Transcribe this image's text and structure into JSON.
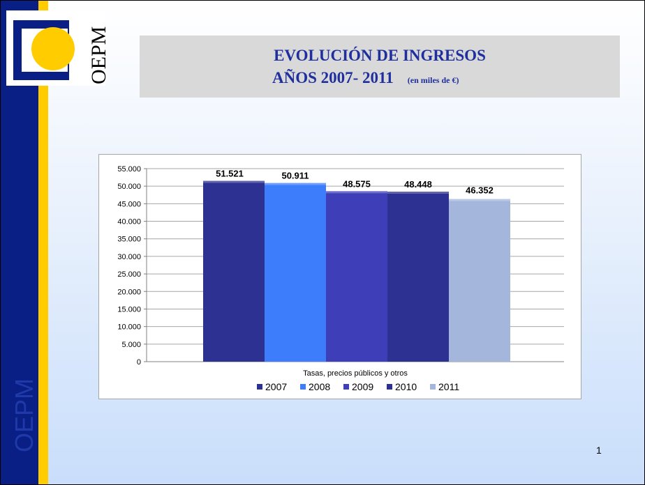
{
  "logo": {
    "text": "OEPM"
  },
  "side_label": "OEPM",
  "title": {
    "line1": "EVOLUCIÓN DE INGRESOS",
    "line2": "AÑOS 2007- 2011",
    "unit": "(en miles de €)"
  },
  "page_number": "1",
  "colors": {
    "navy": "#0a1f86",
    "yellow": "#ffcc00",
    "title": "#1f2f9e"
  },
  "chart_data": {
    "type": "bar",
    "categories": [
      "Tasas, precios públicos y otros"
    ],
    "series": [
      {
        "name": "2007",
        "values": [
          51521
        ],
        "label": "51.521",
        "color": "#2d3191"
      },
      {
        "name": "2008",
        "values": [
          50911
        ],
        "label": "50.911",
        "color": "#3d7dfb"
      },
      {
        "name": "2009",
        "values": [
          48575
        ],
        "label": "48.575",
        "color": "#3d3eb8"
      },
      {
        "name": "2010",
        "values": [
          48448
        ],
        "label": "48.448",
        "color": "#2d3191"
      },
      {
        "name": "2011",
        "values": [
          46352
        ],
        "label": "46.352",
        "color": "#a5b6dc"
      }
    ],
    "y_ticks": [
      "0",
      "5.000",
      "10.000",
      "15.000",
      "20.000",
      "25.000",
      "30.000",
      "35.000",
      "40.000",
      "45.000",
      "50.000",
      "55.000"
    ],
    "ylim": [
      0,
      55000
    ],
    "y_step": 5000,
    "xlabel": "Tasas, precios públicos y otros",
    "grid": true,
    "legend_position": "bottom"
  }
}
